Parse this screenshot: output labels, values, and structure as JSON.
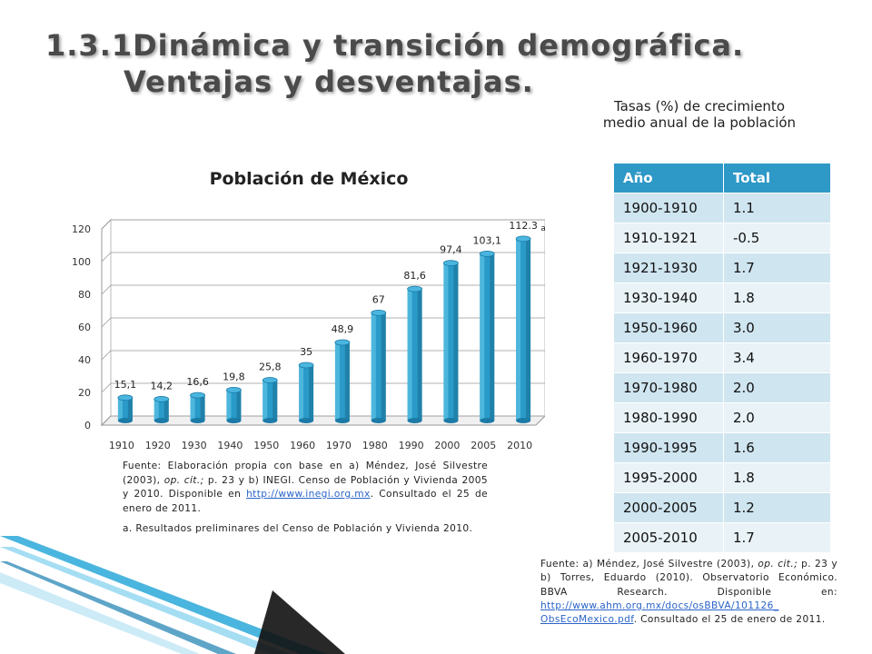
{
  "slide": {
    "title_line1": "1.3.1Dinámica y transición demográfica.",
    "title_line2": "Ventajas y desventajas."
  },
  "chart_section": {
    "source_main_pre": "Fuente: Elaboración propia con base en a) Méndez, José Silvestre (2003), ",
    "source_main_italic": "op. cit.;",
    "source_main_mid": " p. 23 y  b) INEGI. Censo de Población y Vivienda 2005 y 2010. Disponible en ",
    "source_link": "http://www.inegi.org.mx",
    "source_main_post": ". Consultado el 25 de enero de 2011.",
    "note": "a. Resultados preliminares del Censo de Población y Vivienda 2010."
  },
  "chart_data": {
    "type": "bar",
    "title": "Población de México",
    "categories": [
      "1910",
      "1920",
      "1930",
      "1940",
      "1950",
      "1960",
      "1970",
      "1980",
      "1990",
      "2000",
      "2005",
      "2010"
    ],
    "values": [
      15.1,
      14.2,
      16.6,
      19.8,
      25.8,
      35,
      48.9,
      67,
      81.6,
      97.4,
      103.1,
      112.3
    ],
    "data_labels": [
      "15,1",
      "14,2",
      "16,6",
      "19,8",
      "25,8",
      "35",
      "48,9",
      "67",
      "81,6",
      "97,4",
      "103,1",
      "112.3"
    ],
    "label_note": {
      "index": 11,
      "text": "a"
    },
    "yticks": [
      "0",
      "20",
      "40",
      "60",
      "80",
      "100",
      "120"
    ],
    "ylim": [
      0,
      120
    ],
    "bar_color": "#2a9bc8",
    "xlabel": "",
    "ylabel": ""
  },
  "table_section": {
    "caption": "Tasas (%) de crecimiento medio anual de la población",
    "headers": [
      "Año",
      "Total"
    ],
    "rows": [
      [
        "1900-1910",
        "1.1"
      ],
      [
        "1910-1921",
        "-0.5"
      ],
      [
        "1921-1930",
        "1.7"
      ],
      [
        "1930-1940",
        "1.8"
      ],
      [
        "1950-1960",
        "3.0"
      ],
      [
        "1960-1970",
        "3.4"
      ],
      [
        "1970-1980",
        "2.0"
      ],
      [
        "1980-1990",
        "2.0"
      ],
      [
        "1990-1995",
        "1.6"
      ],
      [
        "1995-2000",
        "1.8"
      ],
      [
        "2000-2005",
        "1.2"
      ],
      [
        "2005-2010",
        "1.7"
      ]
    ],
    "header_color": "#2e98c7",
    "source_pre": "Fuente: a) Méndez, José Silvestre (2003), ",
    "source_italic": "op. cit.;",
    "source_mid": " p. 23 y b) Torres, Eduardo (2010). Observatorio Económico. BBVA Research. Disponible en: ",
    "source_link": "http://www.ahm.org.mx/docs/osBBVA/101126_ ObsEcoMexico.pdf",
    "source_post": ". Consultado el 25 de enero de 2011."
  }
}
